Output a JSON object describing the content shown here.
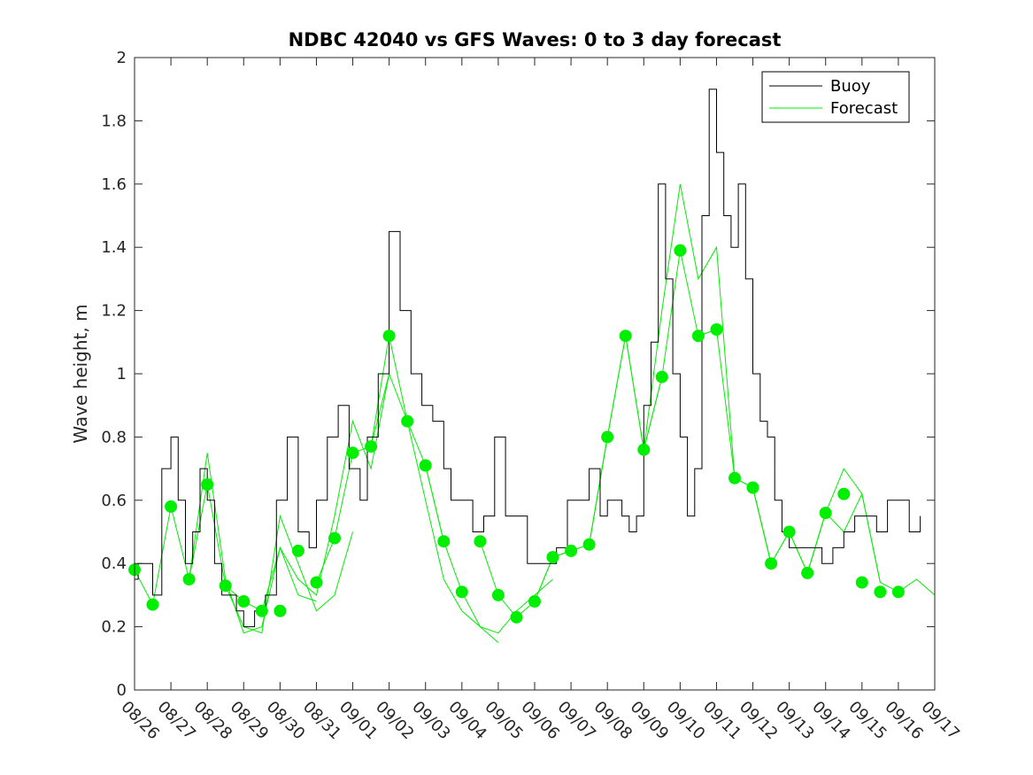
{
  "chart_data": {
    "type": "line",
    "title": "NDBC 42040 vs GFS Waves: 0 to 3 day forecast",
    "xlabel": "",
    "ylabel": "Wave height, m",
    "ylim": [
      0,
      2
    ],
    "yticks": [
      "0",
      "0.2",
      "0.4",
      "0.6",
      "0.8",
      "1",
      "1.2",
      "1.4",
      "1.6",
      "1.8",
      "2"
    ],
    "xlim_days": [
      0,
      22
    ],
    "xtick_labels": [
      "08/26",
      "08/27",
      "08/28",
      "08/29",
      "08/30",
      "08/31",
      "09/01",
      "09/02",
      "09/03",
      "09/04",
      "09/05",
      "09/06",
      "09/07",
      "09/08",
      "09/09",
      "09/10",
      "09/11",
      "09/12",
      "09/13",
      "09/14",
      "09/15",
      "09/16",
      "09/17"
    ],
    "legend": {
      "position": "top-right",
      "entries": [
        "Buoy",
        "Forecast"
      ]
    },
    "colors": {
      "buoy": "#000000",
      "forecast": "#00ee00",
      "marker": "#00ee00"
    },
    "buoy": {
      "name": "Buoy",
      "x": [
        0,
        0.1,
        0.25,
        0.5,
        0.75,
        1.0,
        1.2,
        1.4,
        1.6,
        1.8,
        2.0,
        2.2,
        2.4,
        2.6,
        2.8,
        3.0,
        3.3,
        3.6,
        3.9,
        4.2,
        4.5,
        4.8,
        5.0,
        5.3,
        5.6,
        5.9,
        6.2,
        6.4,
        6.7,
        7.0,
        7.3,
        7.6,
        7.9,
        8.2,
        8.5,
        8.7,
        9.0,
        9.3,
        9.6,
        9.9,
        10.2,
        10.5,
        10.8,
        11.0,
        11.3,
        11.6,
        11.9,
        12.2,
        12.5,
        12.8,
        13.0,
        13.2,
        13.4,
        13.6,
        13.8,
        14.0,
        14.2,
        14.4,
        14.6,
        14.8,
        15.0,
        15.2,
        15.4,
        15.6,
        15.8,
        16.0,
        16.2,
        16.4,
        16.6,
        16.8,
        17.0,
        17.2,
        17.4,
        17.6,
        17.8,
        18.0,
        18.3,
        18.6,
        18.9,
        19.2,
        19.5,
        19.8,
        20.1,
        20.4,
        20.7,
        21.0,
        21.3,
        21.6
      ],
      "y": [
        0.35,
        0.4,
        0.4,
        0.3,
        0.7,
        0.8,
        0.6,
        0.4,
        0.5,
        0.7,
        0.6,
        0.4,
        0.3,
        0.3,
        0.25,
        0.2,
        0.25,
        0.3,
        0.6,
        0.8,
        0.5,
        0.45,
        0.6,
        0.8,
        0.9,
        0.7,
        0.6,
        0.8,
        1.0,
        1.45,
        1.2,
        1.0,
        0.9,
        0.85,
        0.7,
        0.6,
        0.6,
        0.5,
        0.55,
        0.8,
        0.55,
        0.55,
        0.4,
        0.4,
        0.4,
        0.45,
        0.6,
        0.6,
        0.7,
        0.55,
        0.6,
        0.6,
        0.55,
        0.5,
        0.55,
        0.9,
        1.1,
        1.6,
        1.3,
        1.0,
        0.8,
        0.55,
        0.7,
        1.5,
        1.9,
        1.7,
        1.5,
        1.4,
        1.6,
        1.3,
        1.0,
        0.85,
        0.8,
        0.6,
        0.5,
        0.45,
        0.45,
        0.45,
        0.4,
        0.45,
        0.5,
        0.55,
        0.55,
        0.5,
        0.6,
        0.6,
        0.5,
        0.55
      ]
    },
    "forecast_series": [
      {
        "name": "Forecast",
        "x": [
          0,
          0.5,
          1.0,
          1.5,
          2.0,
          2.5,
          3.0,
          3.5
        ],
        "y": [
          0.38,
          0.27,
          0.58,
          0.35,
          0.65,
          0.33,
          0.28,
          0.25
        ]
      },
      {
        "name": "Forecast",
        "x": [
          1.5,
          2.0,
          2.5,
          3.0,
          3.5,
          4.0,
          4.5,
          5.0
        ],
        "y": [
          0.35,
          0.75,
          0.35,
          0.18,
          0.2,
          0.45,
          0.3,
          0.28
        ]
      },
      {
        "name": "Forecast",
        "x": [
          2.5,
          3.0,
          3.5,
          4.0,
          4.5,
          5.0,
          5.5,
          6.0
        ],
        "y": [
          0.33,
          0.2,
          0.18,
          0.55,
          0.4,
          0.25,
          0.3,
          0.5
        ]
      },
      {
        "name": "Forecast",
        "x": [
          3.5,
          4.0,
          4.5,
          5.0,
          5.5,
          6.0,
          6.5,
          7.0
        ],
        "y": [
          0.25,
          0.45,
          0.35,
          0.3,
          0.55,
          0.85,
          0.7,
          1.0
        ]
      },
      {
        "name": "Forecast",
        "x": [
          5.0,
          5.5,
          6.0,
          6.5,
          7.0,
          7.5,
          8.0,
          8.5
        ],
        "y": [
          0.34,
          0.48,
          0.75,
          0.77,
          1.12,
          0.85,
          0.71,
          0.47
        ]
      },
      {
        "name": "Forecast",
        "x": [
          6.5,
          7.0,
          7.5,
          8.0,
          8.5,
          9.0,
          9.5,
          10.0
        ],
        "y": [
          0.77,
          1.0,
          0.85,
          0.6,
          0.35,
          0.25,
          0.2,
          0.15
        ]
      },
      {
        "name": "Forecast",
        "x": [
          8.0,
          8.5,
          9.0,
          9.5,
          10.0,
          10.5,
          11.0,
          11.5
        ],
        "y": [
          0.71,
          0.47,
          0.31,
          0.2,
          0.18,
          0.25,
          0.3,
          0.35
        ]
      },
      {
        "name": "Forecast",
        "x": [
          9.5,
          10.0,
          10.5,
          11.0,
          11.5,
          12.0,
          12.5,
          13.0
        ],
        "y": [
          0.47,
          0.3,
          0.23,
          0.28,
          0.42,
          0.44,
          0.46,
          0.8
        ]
      },
      {
        "name": "Forecast",
        "x": [
          11.0,
          11.5,
          12.0,
          12.5,
          13.0,
          13.5,
          14.0,
          14.5
        ],
        "y": [
          0.28,
          0.42,
          0.44,
          0.46,
          0.8,
          1.12,
          0.76,
          0.99
        ]
      },
      {
        "name": "Forecast",
        "x": [
          12.5,
          13.0,
          13.5,
          14.0,
          14.5,
          15.0,
          15.5,
          16.0
        ],
        "y": [
          0.46,
          0.8,
          1.12,
          0.76,
          0.99,
          1.39,
          1.12,
          1.14
        ]
      },
      {
        "name": "Forecast",
        "x": [
          14.0,
          14.5,
          15.0,
          15.5,
          16.0,
          16.5,
          17.0,
          17.5
        ],
        "y": [
          0.76,
          1.2,
          1.6,
          1.3,
          1.4,
          0.67,
          0.64,
          0.4
        ]
      },
      {
        "name": "Forecast",
        "x": [
          15.5,
          16.0,
          16.5,
          17.0,
          17.5,
          18.0,
          18.5,
          19.0
        ],
        "y": [
          1.12,
          1.14,
          0.67,
          0.64,
          0.4,
          0.5,
          0.37,
          0.56
        ]
      },
      {
        "name": "Forecast",
        "x": [
          17.0,
          17.5,
          18.0,
          18.5,
          19.0,
          19.5,
          20.0,
          20.5
        ],
        "y": [
          0.64,
          0.4,
          0.5,
          0.37,
          0.56,
          0.7,
          0.62,
          0.34
        ]
      },
      {
        "name": "Forecast",
        "x": [
          18.5,
          19.0,
          19.5,
          20.0,
          20.5,
          21.0,
          21.5,
          22.0
        ],
        "y": [
          0.37,
          0.56,
          0.5,
          0.62,
          0.34,
          0.31,
          0.35,
          0.3
        ]
      }
    ],
    "analysis_points": {
      "x": [
        0,
        0.5,
        1.0,
        1.5,
        2.0,
        2.5,
        3.0,
        3.5,
        4.0,
        4.5,
        5.0,
        5.5,
        6.0,
        6.5,
        7.0,
        7.5,
        8.0,
        8.5,
        9.0,
        9.5,
        10.0,
        10.5,
        11.0,
        11.5,
        12.0,
        12.5,
        13.0,
        13.5,
        14.0,
        14.5,
        15.0,
        15.5,
        16.0,
        16.5,
        17.0,
        17.5,
        18.0,
        18.5,
        19.0,
        19.5,
        20.0,
        20.5,
        21.0
      ],
      "y": [
        0.38,
        0.27,
        0.58,
        0.35,
        0.65,
        0.33,
        0.28,
        0.25,
        0.25,
        0.44,
        0.34,
        0.48,
        0.75,
        0.77,
        1.12,
        0.85,
        0.71,
        0.47,
        0.31,
        0.47,
        0.3,
        0.23,
        0.28,
        0.42,
        0.44,
        0.46,
        0.8,
        1.12,
        0.76,
        0.99,
        1.39,
        1.12,
        1.14,
        0.67,
        0.64,
        0.4,
        0.5,
        0.37,
        0.56,
        0.62,
        0.34,
        0.31,
        0.31
      ]
    }
  }
}
